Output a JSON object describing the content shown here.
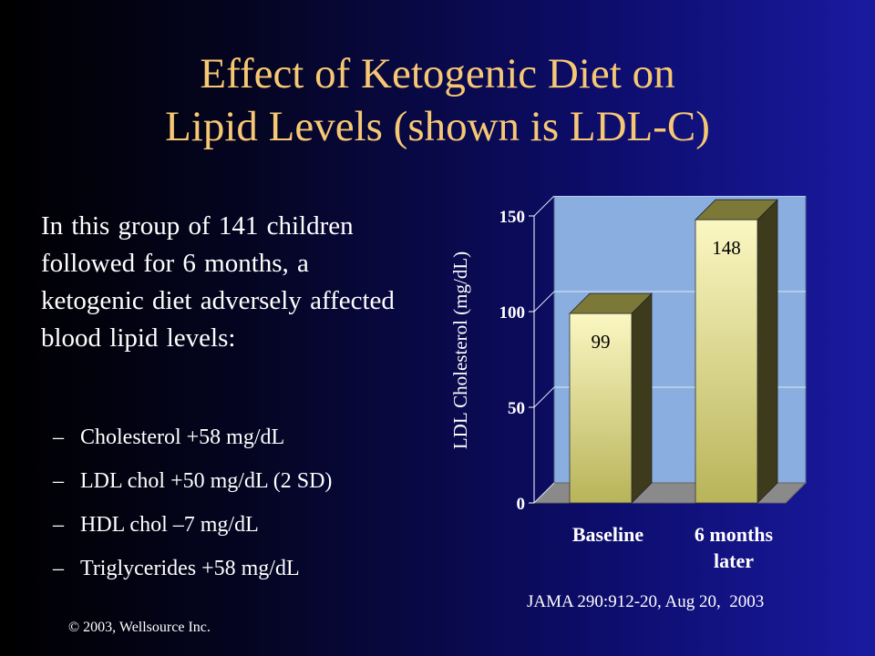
{
  "slide": {
    "title_line1": "Effect of Ketogenic Diet on",
    "title_line2": "Lipid Levels (shown is LDL-C)",
    "intro": "In this group of 141 children followed for 6 months, a ketogenic diet adversely affected blood lipid levels:",
    "bullets": [
      "Cholesterol +58 mg/dL",
      "LDL chol +50 mg/dL (2 SD)",
      "HDL chol –7 mg/dL",
      "Triglycerides +58 mg/dL"
    ],
    "bullet_marker": "–",
    "copyright": "© 2003, Wellsource Inc.",
    "citation": "JAMA 290:912-20, Aug 20,  2003"
  },
  "chart_data": {
    "type": "bar",
    "categories": [
      "Baseline",
      "6 months later"
    ],
    "category_lines": [
      [
        "Baseline"
      ],
      [
        "6 months",
        "later"
      ]
    ],
    "values": [
      99,
      148
    ],
    "data_labels": [
      "99",
      "148"
    ],
    "ylabel": "LDL Cholesterol (mg/dL)",
    "ylim": [
      0,
      150
    ],
    "yticks": [
      0,
      50,
      100,
      150
    ],
    "grid": true,
    "legend": false,
    "colors": {
      "plot_back": "#8aaee0",
      "floor": "#8a8a8a",
      "bar_front_light": "#fbf7c2",
      "bar_front_dark": "#b8b45a",
      "bar_side": "#3e3a1c",
      "bar_top": "#7c7838"
    }
  }
}
